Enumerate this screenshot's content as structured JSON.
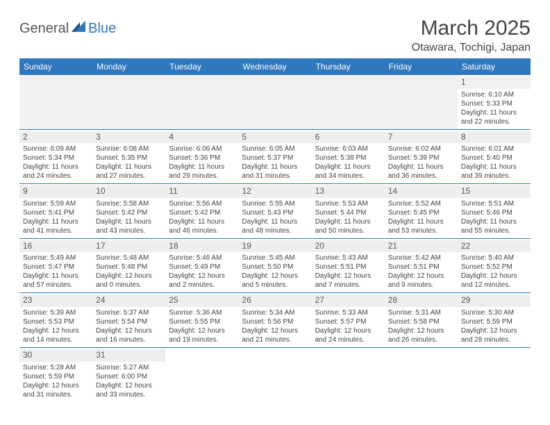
{
  "logo": {
    "part1": "General",
    "part2": "Blue"
  },
  "title": "March 2025",
  "location": "Otawara, Tochigi, Japan",
  "colors": {
    "header_bg": "#2f78bd",
    "header_fg": "#ffffff",
    "daynum_bg": "#eeeeee",
    "border": "#2f78bd"
  },
  "dayHeaders": [
    "Sunday",
    "Monday",
    "Tuesday",
    "Wednesday",
    "Thursday",
    "Friday",
    "Saturday"
  ],
  "weeks": [
    [
      null,
      null,
      null,
      null,
      null,
      null,
      {
        "n": "1",
        "sr": "6:10 AM",
        "ss": "5:33 PM",
        "dl": "11 hours and 22 minutes."
      }
    ],
    [
      {
        "n": "2",
        "sr": "6:09 AM",
        "ss": "5:34 PM",
        "dl": "11 hours and 24 minutes."
      },
      {
        "n": "3",
        "sr": "6:08 AM",
        "ss": "5:35 PM",
        "dl": "11 hours and 27 minutes."
      },
      {
        "n": "4",
        "sr": "6:06 AM",
        "ss": "5:36 PM",
        "dl": "11 hours and 29 minutes."
      },
      {
        "n": "5",
        "sr": "6:05 AM",
        "ss": "5:37 PM",
        "dl": "11 hours and 31 minutes."
      },
      {
        "n": "6",
        "sr": "6:03 AM",
        "ss": "5:38 PM",
        "dl": "11 hours and 34 minutes."
      },
      {
        "n": "7",
        "sr": "6:02 AM",
        "ss": "5:39 PM",
        "dl": "11 hours and 36 minutes."
      },
      {
        "n": "8",
        "sr": "6:01 AM",
        "ss": "5:40 PM",
        "dl": "11 hours and 39 minutes."
      }
    ],
    [
      {
        "n": "9",
        "sr": "5:59 AM",
        "ss": "5:41 PM",
        "dl": "11 hours and 41 minutes."
      },
      {
        "n": "10",
        "sr": "5:58 AM",
        "ss": "5:42 PM",
        "dl": "11 hours and 43 minutes."
      },
      {
        "n": "11",
        "sr": "5:56 AM",
        "ss": "5:42 PM",
        "dl": "11 hours and 46 minutes."
      },
      {
        "n": "12",
        "sr": "5:55 AM",
        "ss": "5:43 PM",
        "dl": "11 hours and 48 minutes."
      },
      {
        "n": "13",
        "sr": "5:53 AM",
        "ss": "5:44 PM",
        "dl": "11 hours and 50 minutes."
      },
      {
        "n": "14",
        "sr": "5:52 AM",
        "ss": "5:45 PM",
        "dl": "11 hours and 53 minutes."
      },
      {
        "n": "15",
        "sr": "5:51 AM",
        "ss": "5:46 PM",
        "dl": "11 hours and 55 minutes."
      }
    ],
    [
      {
        "n": "16",
        "sr": "5:49 AM",
        "ss": "5:47 PM",
        "dl": "11 hours and 57 minutes."
      },
      {
        "n": "17",
        "sr": "5:48 AM",
        "ss": "5:48 PM",
        "dl": "12 hours and 0 minutes."
      },
      {
        "n": "18",
        "sr": "5:46 AM",
        "ss": "5:49 PM",
        "dl": "12 hours and 2 minutes."
      },
      {
        "n": "19",
        "sr": "5:45 AM",
        "ss": "5:50 PM",
        "dl": "12 hours and 5 minutes."
      },
      {
        "n": "20",
        "sr": "5:43 AM",
        "ss": "5:51 PM",
        "dl": "12 hours and 7 minutes."
      },
      {
        "n": "21",
        "sr": "5:42 AM",
        "ss": "5:51 PM",
        "dl": "12 hours and 9 minutes."
      },
      {
        "n": "22",
        "sr": "5:40 AM",
        "ss": "5:52 PM",
        "dl": "12 hours and 12 minutes."
      }
    ],
    [
      {
        "n": "23",
        "sr": "5:39 AM",
        "ss": "5:53 PM",
        "dl": "12 hours and 14 minutes."
      },
      {
        "n": "24",
        "sr": "5:37 AM",
        "ss": "5:54 PM",
        "dl": "12 hours and 16 minutes."
      },
      {
        "n": "25",
        "sr": "5:36 AM",
        "ss": "5:55 PM",
        "dl": "12 hours and 19 minutes."
      },
      {
        "n": "26",
        "sr": "5:34 AM",
        "ss": "5:56 PM",
        "dl": "12 hours and 21 minutes."
      },
      {
        "n": "27",
        "sr": "5:33 AM",
        "ss": "5:57 PM",
        "dl": "12 hours and 24 minutes."
      },
      {
        "n": "28",
        "sr": "5:31 AM",
        "ss": "5:58 PM",
        "dl": "12 hours and 26 minutes."
      },
      {
        "n": "29",
        "sr": "5:30 AM",
        "ss": "5:59 PM",
        "dl": "12 hours and 28 minutes."
      }
    ],
    [
      {
        "n": "30",
        "sr": "5:28 AM",
        "ss": "5:59 PM",
        "dl": "12 hours and 31 minutes."
      },
      {
        "n": "31",
        "sr": "5:27 AM",
        "ss": "6:00 PM",
        "dl": "12 hours and 33 minutes."
      },
      null,
      null,
      null,
      null,
      null
    ]
  ],
  "labels": {
    "sunrise": "Sunrise:",
    "sunset": "Sunset:",
    "daylight": "Daylight:"
  }
}
